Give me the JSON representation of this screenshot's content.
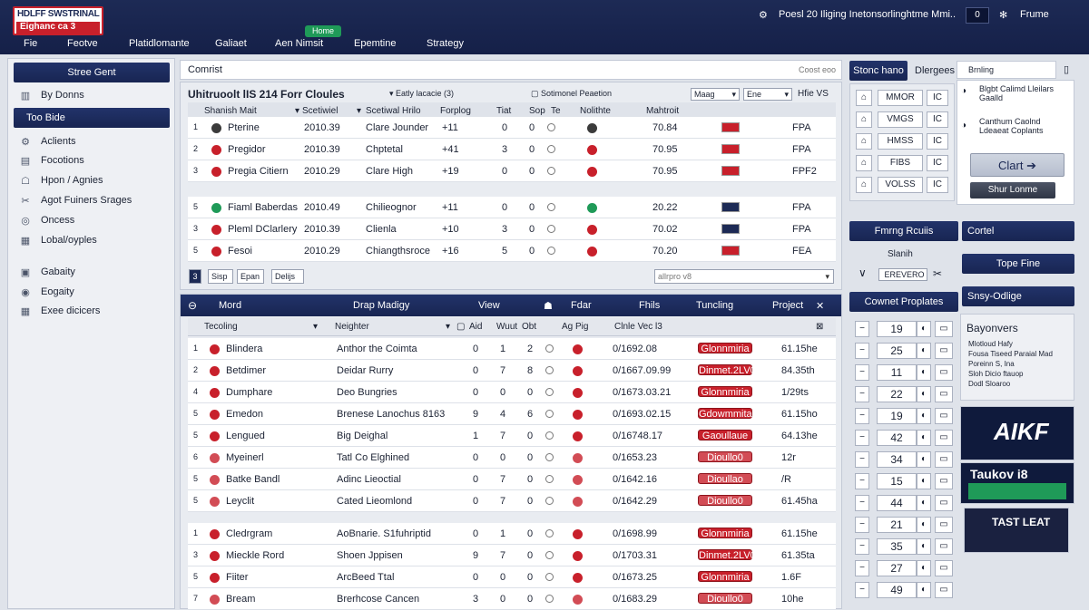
{
  "app": {
    "logo_line1": "HDLFF SWSTRINAL",
    "logo_line2": "Eighanc ca 3",
    "menu": [
      "Fie",
      "Feotve",
      "Platidlomante",
      "Galiaet",
      "Aen Nimsit",
      "Epemtine",
      "Strategy"
    ],
    "badge": "Home",
    "status_text": "Poesl 20 Iliging Inetonsorlinghtme Mmi..",
    "toggle": "0",
    "profile": "Frume"
  },
  "sidebar": {
    "top_button": "Stree Gent",
    "by_items": "By Donns",
    "section": "Too Bide",
    "items": [
      "Aclients",
      "Focotions",
      "Hpon / Agnies",
      "Agot Fuiners Srages",
      "Oncess",
      "Lobal/oyples"
    ],
    "items2": [
      "Gabaity",
      "Eogaity",
      "Exee dicicers"
    ]
  },
  "toolbar": {
    "label": "Comrist",
    "placeholder": "Coost eoo"
  },
  "table1": {
    "title": "Uhitruoolt lIS 214 Forr Cloules",
    "dropdown1": "Eatly lacacie (3)",
    "dropdown2": "Sotimonel Peaetion",
    "sel1": "Maag",
    "sel2": "Ene",
    "sel3": "Hfie VS",
    "headers": [
      "Shanish Mait",
      "Scetiwiel",
      "Scetiwal Hrilo",
      "Forplog",
      "Tiat",
      "Sop",
      "Te",
      "Nolithte",
      "Mahtroit"
    ],
    "rows": [
      {
        "n": "1",
        "name": "Pterine",
        "year": "2010.39",
        "club": "Clare Jounder",
        "v1": "+11",
        "v2": "0",
        "v3": "0",
        "val": "70.84",
        "code": "FPA",
        "color": "#3b3b3b",
        "flag": "#c8202b"
      },
      {
        "n": "2",
        "name": "Pregidor",
        "year": "2010.39",
        "club": "Chptetal",
        "v1": "+41",
        "v2": "3",
        "v3": "0",
        "val": "70.95",
        "code": "FPA",
        "color": "#c8202b",
        "flag": "#c8202b"
      },
      {
        "n": "3",
        "name": "Pregia Citiern",
        "year": "2010.29",
        "club": "Clare High",
        "v1": "+19",
        "v2": "0",
        "v3": "0",
        "val": "70.95",
        "code": "FPF2",
        "color": "#c8202b",
        "flag": "#c8202b"
      }
    ],
    "rows2": [
      {
        "n": "5",
        "name": "Fiaml Baberdas",
        "year": "2010.49",
        "club": "Chilieognor",
        "v1": "+11",
        "v2": "0",
        "v3": "0",
        "val": "20.22",
        "code": "FPA",
        "color": "#1f9a58",
        "flag": "#1d2a55"
      },
      {
        "n": "3",
        "name": "Pleml DClarlery",
        "year": "2010.39",
        "club": "Clienla",
        "v1": "+10",
        "v2": "3",
        "v3": "0",
        "val": "70.02",
        "code": "FPA",
        "color": "#c8202b",
        "flag": "#1d2a55"
      },
      {
        "n": "5",
        "name": "Fesoi",
        "year": "2010.29",
        "club": "Chiangthsroce",
        "v1": "+16",
        "v2": "5",
        "v3": "0",
        "val": "70.20",
        "code": "FEA",
        "color": "#c8202b",
        "flag": "#c8202b"
      }
    ],
    "btn1": "3",
    "btn2": "Sisp",
    "btn3": "Epan",
    "btn4": "Delijs",
    "search": "allrpro v8"
  },
  "table2": {
    "headers": [
      "Mord",
      "Drap Madigy",
      "View",
      "Fdar",
      "Fhils",
      "Tuncling",
      "Project"
    ],
    "sub": [
      "Tecoling",
      "Neighter",
      "Aid",
      "Wuut",
      "Obt",
      "Ag Pig",
      "Clnle Vec l3"
    ],
    "rows": [
      {
        "n": "1",
        "name": "Blindera",
        "club": "Anthor the Coimta",
        "a": "0",
        "b": "1",
        "c": "2",
        "date": "0/1692.08",
        "pill": "Glonnmiria",
        "pay": "61.15he",
        "pc": "#c8202b"
      },
      {
        "n": "2",
        "name": "Betdimer",
        "club": "Deidar Rurry",
        "a": "0",
        "b": "7",
        "c": "8",
        "date": "0/1667.09.99",
        "pill": "Dinmet.2LV0",
        "pay": "84.35th",
        "pc": "#c8202b"
      },
      {
        "n": "4",
        "name": "Dumphare",
        "club": "Deo Bungries",
        "a": "0",
        "b": "0",
        "c": "0",
        "date": "0/1673.03.21",
        "pill": "Glonnmiria",
        "pay": "1/29ts",
        "pc": "#c8202b"
      },
      {
        "n": "5",
        "name": "Emedon",
        "club": "Brenese Lanochus 8163",
        "a": "9",
        "b": "4",
        "c": "6",
        "date": "0/1693.02.15",
        "pill": "Gdowmmita",
        "pay": "61.15ho",
        "pc": "#c8202b"
      },
      {
        "n": "5",
        "name": "Lengued",
        "club": "Big Deighal",
        "a": "1",
        "b": "7",
        "c": "0",
        "date": "0/16748.17",
        "pill": "Gaoullaue",
        "pay": "64.13he",
        "pc": "#c8202b"
      },
      {
        "n": "6",
        "name": "Myeinerl",
        "club": "Tatl Co Elghined",
        "a": "0",
        "b": "0",
        "c": "0",
        "date": "0/1653.23",
        "pill": "Dioullo0",
        "pay": "12r",
        "pc": "#d24c55"
      },
      {
        "n": "5",
        "name": "Batke Bandl",
        "club": "Adinc Lieoctial",
        "a": "0",
        "b": "7",
        "c": "0",
        "date": "0/1642.16",
        "pill": "Dioullao",
        "pay": "/R",
        "pc": "#d24c55"
      },
      {
        "n": "5",
        "name": "Leyclit",
        "club": "Cated Lieomlond",
        "a": "0",
        "b": "7",
        "c": "0",
        "date": "0/1642.29",
        "pill": "Dioullo0",
        "pay": "61.45ha",
        "pc": "#d24c55"
      }
    ],
    "rows2": [
      {
        "n": "1",
        "name": "Cledrgram",
        "club": "AoBnarie. S1fuhriptid",
        "a": "0",
        "b": "1",
        "c": "0",
        "date": "0/1698.99",
        "pill": "Glonnmiria",
        "pay": "61.15he",
        "pc": "#c8202b"
      },
      {
        "n": "3",
        "name": "Mieckle Rord",
        "club": "Shoen Jppisen",
        "a": "9",
        "b": "7",
        "c": "0",
        "date": "0/1703.31",
        "pill": "Dinmet.2LV0",
        "pay": "61.35ta",
        "pc": "#c8202b"
      },
      {
        "n": "5",
        "name": "Fiiter",
        "club": "ArcBeed Ttal",
        "a": "0",
        "b": "0",
        "c": "0",
        "date": "0/1673.25",
        "pill": "Glonnmiria",
        "pay": "1.6F",
        "pc": "#c8202b"
      },
      {
        "n": "7",
        "name": "Bream",
        "club": "Brerhcose Cancen",
        "a": "3",
        "b": "0",
        "c": "0",
        "date": "0/1683.29",
        "pill": "Dioullo0",
        "pay": "10he",
        "pc": "#d24c55"
      }
    ]
  },
  "right": {
    "tab1": "Stonc hano",
    "tab2": "Dlergees",
    "search": "Brnling",
    "squad_codes": [
      "MMOR",
      "VMGS",
      "HMSS",
      "FIBS",
      "VOLSS"
    ],
    "squad_btn": "IC",
    "msg1": "Blgbt Calimd Lleilars Gaalld",
    "msg2": "Canthum Caolnd Ldeaeat Coplants",
    "clart": "Clart ➔",
    "start": "Shur Lonme",
    "b1": "Fmrng Rcuiis",
    "b2": "Cortel",
    "small": "Slanih",
    "small_sel": "EREVERO",
    "b3": "Tope Fine",
    "b4": "Cownet Proplates",
    "b5": "Snsy-Odlige",
    "nums": [
      "19",
      "25",
      "11",
      "22",
      "19",
      "42",
      "34",
      "15",
      "44",
      "21",
      "35",
      "27",
      "49"
    ],
    "bayonvers": "Bayonvers",
    "news": [
      "Mlotloud Hafy",
      "Fousa Tiseed Paraial Mad",
      "Poreinn S, Ina",
      "Sloh Dicio ftauop",
      "Dodl Sloaroo"
    ],
    "ad1": "AIKF",
    "ad2": "Taukov i8",
    "ad3": "TAST LEAT"
  }
}
